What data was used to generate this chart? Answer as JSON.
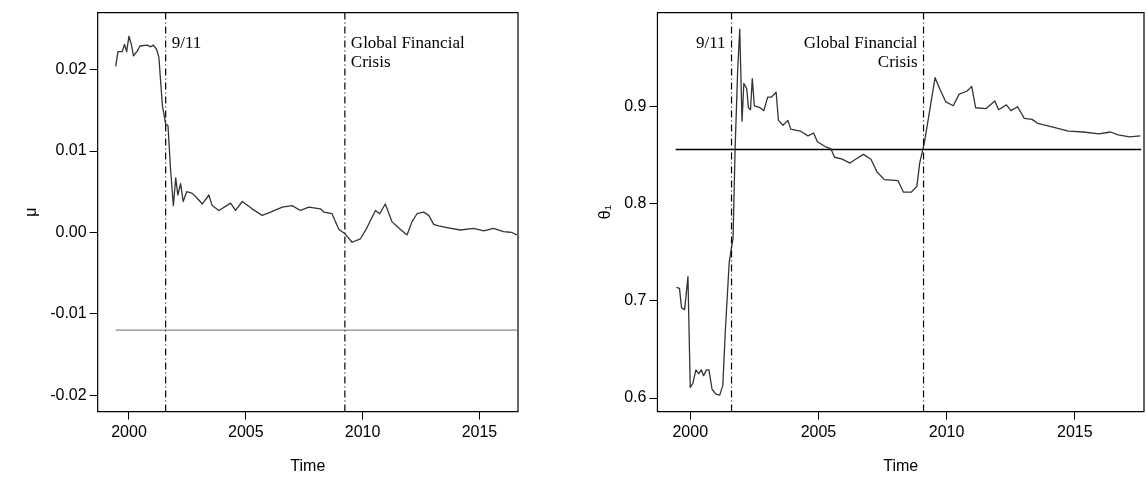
{
  "chart_data": [
    {
      "type": "line",
      "xlabel": "Time",
      "ylabel": "μ",
      "xlim": [
        1998.66,
        2016.65
      ],
      "ylim": [
        -0.022,
        0.027
      ],
      "xticks": [
        2000,
        2005,
        2010,
        2015
      ],
      "yticks": [
        -0.02,
        -0.01,
        {
          "value": 0,
          "label": "0.00"
        },
        0.01,
        0.02
      ],
      "marker": "none",
      "series": [
        {
          "color": "#333333",
          "x": [
            1999.43,
            1999.53,
            1999.71,
            1999.81,
            1999.9,
            2000.0,
            2000.1,
            2000.19,
            2000.36,
            2000.47,
            2000.78,
            2000.93,
            2001.04,
            2001.18,
            2001.28,
            2001.43,
            2001.57,
            2001.67,
            2001.78,
            2001.9,
            2002.0,
            2002.09,
            2002.21,
            2002.32,
            2002.47,
            2002.71,
            2002.92,
            2003.14,
            2003.42,
            2003.56,
            2003.85,
            2004.35,
            2004.56,
            2004.85,
            2005.27,
            2005.7,
            2006.06,
            2006.56,
            2006.98,
            2007.34,
            2007.7,
            2008.19,
            2008.34,
            2008.69,
            2008.98,
            2009.26,
            2009.55,
            2009.9,
            2010.19,
            2010.55,
            2010.73,
            2010.97,
            2011.26,
            2011.61,
            2011.9,
            2012.11,
            2012.33,
            2012.61,
            2012.83,
            2013.04,
            2013.25,
            2013.61,
            2014.18,
            2014.75,
            2015.18,
            2015.6,
            2016.03,
            2016.39,
            2016.6
          ],
          "values": [
            0.0204,
            0.0222,
            0.0222,
            0.0231,
            0.0222,
            0.0241,
            0.0231,
            0.0217,
            0.0223,
            0.0229,
            0.023,
            0.0228,
            0.023,
            0.0225,
            0.0215,
            0.0156,
            0.0133,
            0.0131,
            0.0077,
            0.0033,
            0.0067,
            0.0046,
            0.006,
            0.0038,
            0.005,
            0.0048,
            0.0042,
            0.0035,
            0.0046,
            0.0033,
            0.0027,
            0.0036,
            0.0027,
            0.0038,
            0.0029,
            0.0021,
            0.0025,
            0.0031,
            0.0033,
            0.0027,
            0.0031,
            0.0029,
            0.0025,
            0.0023,
            0.0004,
            -0.0002,
            -0.0012,
            -0.0008,
            0.0006,
            0.0027,
            0.0023,
            0.0035,
            0.0013,
            0.0004,
            -0.0003,
            0.0013,
            0.0023,
            0.0025,
            0.0021,
            0.001,
            0.0008,
            0.0006,
            0.0003,
            0.0005,
            0.0002,
            0.0005,
            0.0001,
            0.0,
            -0.0003
          ]
        },
        {
          "color": "#888888",
          "x": [
            1999.43,
            2016.6
          ],
          "values": [
            -0.012,
            -0.012
          ]
        }
      ],
      "ref_lines": [
        {
          "axis": "x",
          "value": 2001.57,
          "color": "#000000",
          "line_style": "dashed"
        },
        {
          "axis": "x",
          "value": 2009.24,
          "color": "#000000",
          "line_style": "dashed"
        }
      ],
      "annotations": [
        "9/11",
        "Global Financial\nCrisis"
      ]
    },
    {
      "type": "line",
      "xlabel": "Time",
      "ylabel": "θ₁",
      "xlim": [
        1998.72,
        2017.7
      ],
      "ylim": [
        0.586,
        0.997
      ],
      "xticks": [
        2000,
        2005,
        2010,
        2015
      ],
      "yticks": [
        0.6,
        0.7,
        0.8,
        0.9
      ],
      "marker": "none",
      "series": [
        {
          "color": "#333333",
          "x": [
            1999.46,
            1999.58,
            1999.66,
            1999.78,
            1999.91,
            2000.0,
            2000.1,
            2000.22,
            2000.33,
            2000.43,
            2000.52,
            2000.63,
            2000.73,
            2000.85,
            2001.0,
            2001.15,
            2001.27,
            2001.37,
            2001.52,
            2001.67,
            2001.75,
            2001.85,
            2001.93,
            2002.02,
            2002.09,
            2002.2,
            2002.27,
            2002.35,
            2002.42,
            2002.5,
            2002.72,
            2002.87,
            2003.02,
            2003.17,
            2003.35,
            2003.44,
            2003.62,
            2003.81,
            2003.92,
            2004.29,
            2004.59,
            2004.81,
            2004.96,
            2005.26,
            2005.48,
            2005.63,
            2005.93,
            2006.23,
            2006.45,
            2006.75,
            2007.05,
            2007.28,
            2007.57,
            2008.1,
            2008.32,
            2008.62,
            2008.84,
            2008.95,
            2009.14,
            2009.37,
            2009.55,
            2009.74,
            2009.97,
            2010.26,
            2010.49,
            2010.79,
            2010.98,
            2011.13,
            2011.53,
            2011.88,
            2012.03,
            2012.33,
            2012.51,
            2012.77,
            2013.03,
            2013.33,
            2013.55,
            2014.15,
            2014.75,
            2015.34,
            2015.94,
            2016.39,
            2016.69,
            2017.14,
            2017.56
          ],
          "values": [
            0.714,
            0.713,
            0.693,
            0.691,
            0.725,
            0.611,
            0.615,
            0.629,
            0.625,
            0.629,
            0.623,
            0.629,
            0.629,
            0.609,
            0.604,
            0.603,
            0.613,
            0.67,
            0.74,
            0.765,
            0.857,
            0.938,
            0.98,
            0.885,
            0.924,
            0.919,
            0.899,
            0.897,
            0.929,
            0.901,
            0.899,
            0.896,
            0.91,
            0.91,
            0.915,
            0.886,
            0.881,
            0.886,
            0.877,
            0.875,
            0.87,
            0.873,
            0.864,
            0.859,
            0.857,
            0.848,
            0.846,
            0.842,
            0.846,
            0.851,
            0.846,
            0.833,
            0.825,
            0.824,
            0.812,
            0.812,
            0.818,
            0.842,
            0.864,
            0.901,
            0.93,
            0.918,
            0.905,
            0.901,
            0.913,
            0.916,
            0.921,
            0.899,
            0.898,
            0.906,
            0.897,
            0.902,
            0.896,
            0.9,
            0.888,
            0.887,
            0.883,
            0.879,
            0.875,
            0.874,
            0.872,
            0.874,
            0.871,
            0.869,
            0.87
          ]
        },
        {
          "color": "#000000",
          "x": [
            1999.43,
            2017.59
          ],
          "values": [
            0.856,
            0.856
          ]
        }
      ],
      "ref_lines": [
        {
          "axis": "x",
          "value": 2001.61,
          "color": "#000000",
          "line_style": "dashed"
        },
        {
          "axis": "x",
          "value": 2009.1,
          "color": "#000000",
          "line_style": "dashed"
        }
      ],
      "annotations": [
        "9/11",
        "Global Financial\nCrisis"
      ]
    }
  ]
}
